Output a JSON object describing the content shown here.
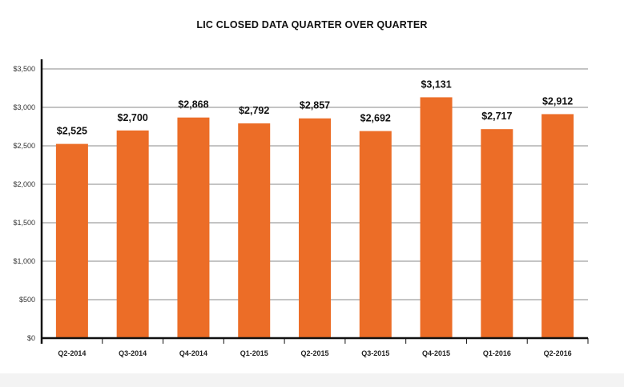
{
  "chart_data": {
    "type": "bar",
    "title": "LIC CLOSED DATA QUARTER OVER QUARTER",
    "categories": [
      "Q2-2014",
      "Q3-2014",
      "Q4-2014",
      "Q1-2015",
      "Q2-2015",
      "Q3-2015",
      "Q4-2015",
      "Q1-2016",
      "Q2-2016"
    ],
    "values": [
      2525,
      2700,
      2868,
      2792,
      2857,
      2692,
      3131,
      2717,
      2912
    ],
    "data_labels": [
      "$2,525",
      "$2,700",
      "$2,868",
      "$2,792",
      "$2,857",
      "$2,692",
      "$3,131",
      "$2,717",
      "$2,912"
    ],
    "y_ticks": [
      0,
      500,
      1000,
      1500,
      2000,
      2500,
      3000,
      3500
    ],
    "y_tick_labels": [
      "$0",
      "$500",
      "$1,000",
      "$1,500",
      "$2,000",
      "$2,500",
      "$3,000",
      "$3,500"
    ],
    "ylim": [
      0,
      3500
    ],
    "xlabel": "",
    "ylabel": "",
    "grid": true,
    "colors": {
      "bar": "#ec6d27",
      "grid": "#8a8a8a",
      "axis": "#111111"
    }
  }
}
